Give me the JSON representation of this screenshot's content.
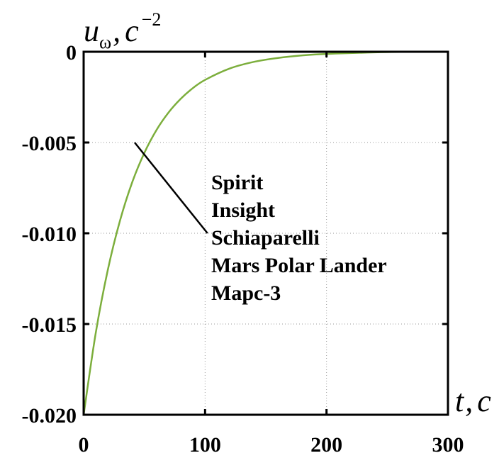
{
  "chart_data": {
    "type": "line",
    "title": "",
    "xlabel": {
      "main": "t",
      "sep": ",",
      "unit": "c"
    },
    "ylabel": {
      "main": "u",
      "sub": "ω",
      "sep": ",",
      "unit": "c",
      "exp": "−2"
    },
    "xlim": [
      0,
      300
    ],
    "ylim": [
      -0.02,
      0
    ],
    "x_ticks": [
      {
        "value": 0,
        "label": "0"
      },
      {
        "value": 100,
        "label": "100"
      },
      {
        "value": 200,
        "label": "200"
      },
      {
        "value": 300,
        "label": "300"
      }
    ],
    "y_ticks": [
      {
        "value": 0,
        "label": "0"
      },
      {
        "value": -0.005,
        "label": "-0.005"
      },
      {
        "value": -0.01,
        "label": "-0.010"
      },
      {
        "value": -0.015,
        "label": "-0.015"
      },
      {
        "value": -0.02,
        "label": "-0.020"
      }
    ],
    "grid": true,
    "series": [
      {
        "color": "#7cae3c",
        "x": [
          0,
          10,
          20,
          30,
          40,
          50,
          60,
          70,
          80,
          90,
          100,
          120,
          140,
          160,
          180,
          200,
          250,
          300
        ],
        "y": [
          -0.02,
          -0.01548,
          -0.01199,
          -0.00929,
          -0.00719,
          -0.00557,
          -0.00431,
          -0.00334,
          -0.00259,
          -0.002,
          -0.00155,
          -0.00093,
          -0.00056,
          -0.00034,
          -0.0002,
          -0.00012,
          -2e-05,
          0
        ]
      }
    ],
    "annotation": {
      "text_lines": [
        "Spirit",
        "Insight",
        "Schiaparelli",
        "Mars Polar Lander",
        "Марс-3"
      ],
      "points_to": {
        "x": 42,
        "y": -0.005
      },
      "leader_end": {
        "x": 102,
        "y": -0.01
      }
    }
  }
}
